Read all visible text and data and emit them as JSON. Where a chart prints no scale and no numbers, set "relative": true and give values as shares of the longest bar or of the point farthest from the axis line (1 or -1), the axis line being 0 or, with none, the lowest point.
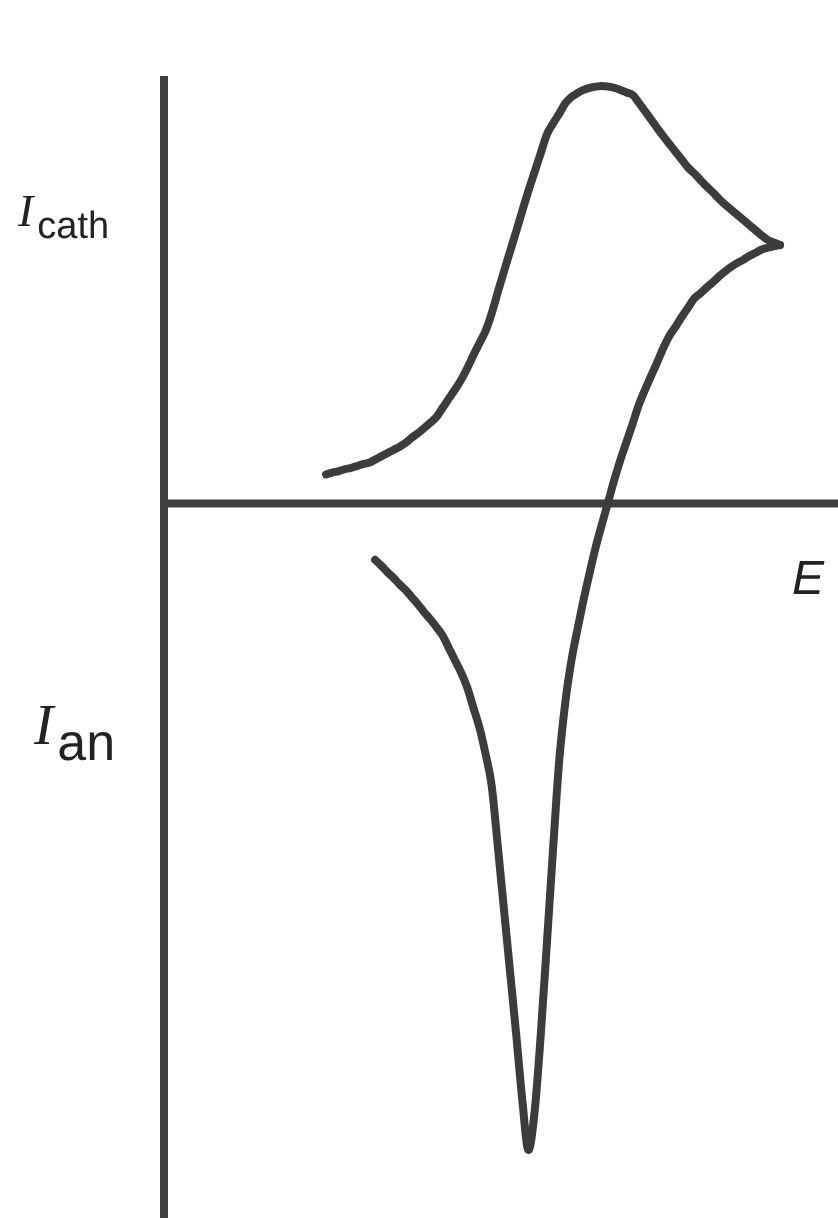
{
  "chart_data": {
    "type": "line",
    "xlabel": "E",
    "ylabel": "I$_{cath}$",
    "annotations": [
      "I$_{an}$"
    ],
    "relative": true,
    "categories": [
      null,
      null,
      null,
      null,
      null,
      null,
      null,
      null,
      null,
      null,
      null,
      null,
      null,
      null,
      null,
      null,
      null,
      null,
      null,
      null,
      null,
      null,
      null,
      null,
      null,
      null,
      null,
      null,
      null,
      null,
      null,
      null,
      null,
      null,
      null,
      null,
      null,
      null,
      null,
      null,
      null,
      null,
      null,
      null,
      null,
      null,
      null,
      null,
      null,
      null,
      null,
      null,
      null,
      null,
      null,
      null,
      null,
      null,
      null,
      null,
      null,
      null,
      null,
      null,
      null,
      null,
      null,
      null,
      null,
      null,
      null,
      null,
      null,
      null,
      null
    ],
    "series": [
      {
        "color": "#3c3c3c",
        "values": [
          0.045,
          0.048,
          0.05,
          0.053,
          0.055,
          0.058,
          0.061,
          0.063,
          0.068,
          0.073,
          0.078,
          0.083,
          0.088,
          0.094,
          0.102,
          0.109,
          0.117,
          0.125,
          0.134,
          0.148,
          0.162,
          0.176,
          0.191,
          0.209,
          0.229,
          0.248,
          0.267,
          0.294,
          0.327,
          0.359,
          0.39,
          0.421,
          0.453,
          0.484,
          0.513,
          0.542,
          0.571,
          0.588,
          0.603,
          0.619,
          0.629,
          0.635,
          0.64,
          0.643,
          0.645,
          0.646,
          0.645,
          0.643,
          0.64,
          0.636,
          0.632,
          0.62,
          0.607,
          0.594,
          0.581,
          0.568,
          0.556,
          0.544,
          0.532,
          0.52,
          0.511,
          0.501,
          0.491,
          0.482,
          0.472,
          0.463,
          0.455,
          0.447,
          0.439,
          0.431,
          0.423,
          0.415,
          0.408,
          0.404,
          0.4
        ]
      },
      {
        "color": "#3c3c3c",
        "values": [
          null,
          null,
          null,
          null,
          null,
          null,
          null,
          null,
          -0.087,
          -0.096,
          -0.106,
          -0.115,
          -0.125,
          -0.134,
          -0.145,
          -0.156,
          -0.168,
          -0.179,
          -0.191,
          -0.204,
          -0.223,
          -0.242,
          -0.261,
          -0.284,
          -0.315,
          -0.346,
          -0.387,
          -0.436,
          -0.53,
          -0.627,
          -0.724,
          -0.821,
          -0.923,
          -1.0,
          -0.941,
          -0.822,
          -0.681,
          -0.536,
          -0.399,
          -0.308,
          -0.243,
          -0.194,
          -0.148,
          -0.106,
          -0.066,
          -0.031,
          0.003,
          0.037,
          0.068,
          0.096,
          0.124,
          0.153,
          0.176,
          0.198,
          0.219,
          0.241,
          0.26,
          0.274,
          0.289,
          0.303,
          0.317,
          0.325,
          0.334,
          0.342,
          0.351,
          0.359,
          0.366,
          0.372,
          0.377,
          0.383,
          0.388,
          0.393,
          0.396,
          0.398,
          0.4
        ]
      }
    ]
  }
}
